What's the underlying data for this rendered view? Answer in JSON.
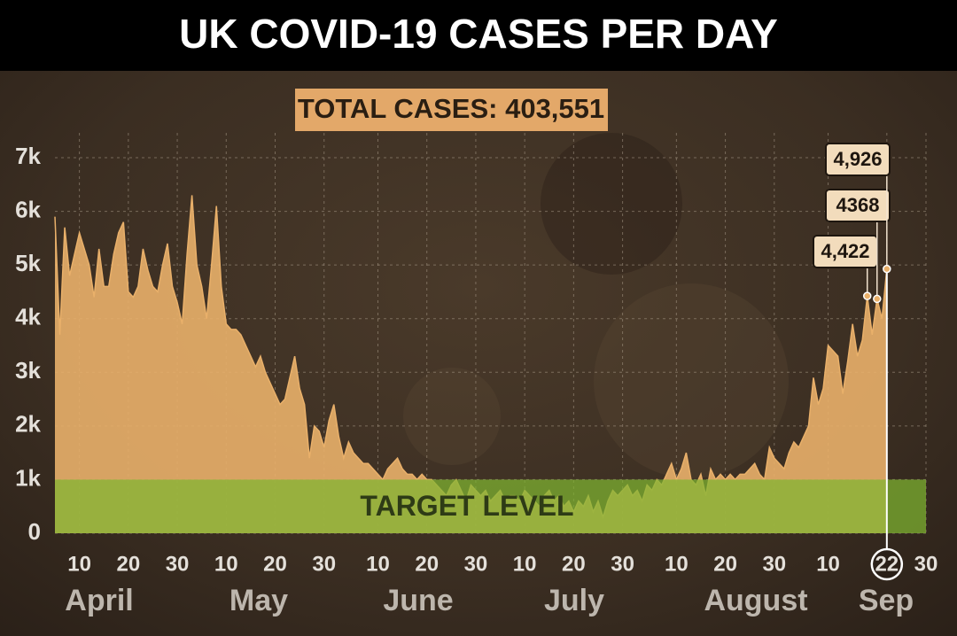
{
  "chart_data": {
    "type": "area",
    "title": "UK COVID-19 CASES PER DAY",
    "subtitle": "TOTAL CASES: 403,551",
    "target_label": "TARGET LEVEL",
    "target_level": 1000,
    "color": "#e9b06a",
    "target_color": "#7fb531",
    "ylim": [
      0,
      7000
    ],
    "yticks": [
      0,
      {
        "value": 1000,
        "label": "1k"
      },
      {
        "value": 2000,
        "label": "2k"
      },
      {
        "value": 3000,
        "label": "3k"
      },
      {
        "value": 4000,
        "label": "4k"
      },
      {
        "value": 5000,
        "label": "5k"
      },
      {
        "value": 6000,
        "label": "6k"
      },
      {
        "value": 7000,
        "label": "7k"
      }
    ],
    "grid": true,
    "months": [
      "April",
      "May",
      "June",
      "July",
      "August",
      "Sep"
    ],
    "highlight": "22",
    "categories": [
      null,
      null,
      null,
      null,
      null,
      "10",
      null,
      null,
      null,
      null,
      null,
      null,
      null,
      null,
      null,
      "20",
      null,
      null,
      null,
      null,
      null,
      null,
      null,
      null,
      null,
      "30",
      null,
      null,
      null,
      null,
      null,
      null,
      null,
      null,
      null,
      "10",
      null,
      null,
      null,
      null,
      null,
      null,
      null,
      null,
      null,
      "20",
      null,
      null,
      null,
      null,
      null,
      null,
      null,
      null,
      null,
      "30",
      null,
      null,
      null,
      null,
      null,
      null,
      null,
      null,
      null,
      null,
      "10",
      null,
      null,
      null,
      null,
      null,
      null,
      null,
      null,
      null,
      "20",
      null,
      null,
      null,
      null,
      null,
      null,
      null,
      null,
      null,
      "30",
      null,
      null,
      null,
      null,
      null,
      null,
      null,
      null,
      null,
      "10",
      null,
      null,
      null,
      null,
      null,
      null,
      null,
      null,
      null,
      "20",
      null,
      null,
      null,
      null,
      null,
      null,
      null,
      null,
      null,
      "30",
      null,
      null,
      null,
      null,
      null,
      null,
      null,
      null,
      null,
      null,
      "10",
      null,
      null,
      null,
      null,
      null,
      null,
      null,
      null,
      null,
      "20",
      null,
      null,
      null,
      null,
      null,
      null,
      null,
      null,
      null,
      "30",
      null,
      null,
      null,
      null,
      null,
      null,
      null,
      null,
      null,
      null,
      "10",
      null,
      null,
      null,
      null,
      null,
      null,
      null,
      null,
      null,
      null,
      null,
      "22",
      null,
      null,
      null,
      null,
      null,
      null,
      null,
      "30"
    ],
    "values": [
      5900,
      3700,
      5700,
      4800,
      5200,
      5600,
      5300,
      5000,
      4400,
      5300,
      4600,
      4600,
      5200,
      5600,
      5800,
      4500,
      4400,
      4600,
      5300,
      4900,
      4600,
      4500,
      5000,
      5400,
      4600,
      4300,
      3900,
      5200,
      6300,
      5000,
      4600,
      4000,
      5000,
      6100,
      4600,
      3900,
      3800,
      3800,
      3700,
      3500,
      3300,
      3100,
      3300,
      3000,
      2800,
      2600,
      2400,
      2500,
      2900,
      3300,
      2700,
      2400,
      1400,
      2000,
      1900,
      1600,
      2100,
      2400,
      1800,
      1400,
      1700,
      1500,
      1400,
      1300,
      1300,
      1200,
      1100,
      1000,
      1200,
      1300,
      1400,
      1200,
      1100,
      1100,
      1000,
      1100,
      1000,
      1000,
      900,
      800,
      700,
      900,
      1000,
      800,
      600,
      900,
      800,
      700,
      800,
      600,
      700,
      800,
      600,
      700,
      700,
      600,
      800,
      700,
      600,
      500,
      700,
      800,
      600,
      700,
      500,
      600,
      400,
      600,
      500,
      700,
      400,
      600,
      300,
      600,
      800,
      700,
      800,
      900,
      700,
      800,
      600,
      900,
      800,
      1000,
      900,
      1100,
      1300,
      1000,
      1200,
      1500,
      1000,
      900,
      1100,
      700,
      1200,
      1000,
      1100,
      1000,
      1100,
      1000,
      1100,
      1100,
      1200,
      1300,
      1100,
      1000,
      1600,
      1400,
      1300,
      1200,
      1500,
      1700,
      1600,
      1800,
      2000,
      2900,
      2400,
      2700,
      3500,
      3400,
      3300,
      2600,
      3200,
      3900,
      3300,
      3600,
      4422,
      3700,
      4368,
      4000,
      4926,
      null,
      null,
      null,
      null,
      null,
      null,
      null,
      null
    ],
    "value_labels": [
      null,
      null,
      null,
      null,
      null,
      null,
      null,
      null,
      null,
      null,
      null,
      null,
      null,
      null,
      null,
      null,
      null,
      null,
      null,
      null,
      null,
      null,
      null,
      null,
      null,
      null,
      null,
      null,
      null,
      null,
      null,
      null,
      null,
      null,
      null,
      null,
      null,
      null,
      null,
      null,
      null,
      null,
      null,
      null,
      null,
      null,
      null,
      null,
      null,
      null,
      null,
      null,
      null,
      null,
      null,
      null,
      null,
      null,
      null,
      null,
      null,
      null,
      null,
      null,
      null,
      null,
      null,
      null,
      null,
      null,
      null,
      null,
      null,
      null,
      null,
      null,
      null,
      null,
      null,
      null,
      null,
      null,
      null,
      null,
      null,
      null,
      null,
      null,
      null,
      null,
      null,
      null,
      null,
      null,
      null,
      null,
      null,
      null,
      null,
      null,
      null,
      null,
      null,
      null,
      null,
      null,
      null,
      null,
      null,
      null,
      null,
      null,
      null,
      null,
      null,
      null,
      null,
      null,
      null,
      null,
      null,
      null,
      null,
      null,
      null,
      null,
      null,
      null,
      null,
      null,
      null,
      null,
      null,
      null,
      null,
      null,
      null,
      null,
      null,
      null,
      null,
      null,
      null,
      null,
      null,
      null,
      null,
      null,
      null,
      null,
      null,
      null,
      null,
      null,
      null,
      null,
      null,
      null,
      null,
      null,
      null,
      null,
      null,
      null,
      null,
      null,
      "4,422",
      null,
      "4368",
      null,
      "4,926",
      null,
      null,
      null,
      null,
      null,
      null,
      null,
      null
    ]
  }
}
